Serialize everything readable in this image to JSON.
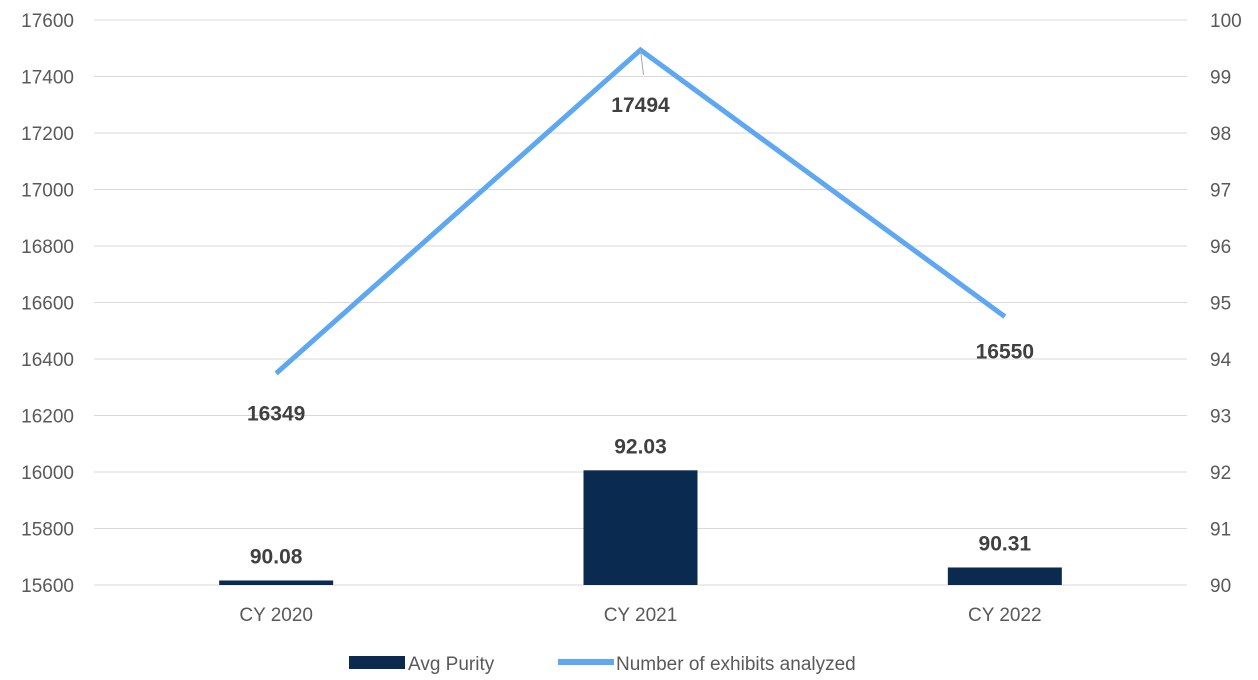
{
  "chart_data": {
    "type": "bar",
    "categories": [
      "CY 2020",
      "CY 2021",
      "CY 2022"
    ],
    "series": [
      {
        "name": "Avg Purity",
        "type": "bar",
        "axis": "right",
        "values": [
          90.08,
          92.03,
          90.31
        ],
        "color": "#0b2a4f"
      },
      {
        "name": "Number of exhibits analyzed",
        "type": "line",
        "axis": "left",
        "values": [
          16349,
          17494,
          16550
        ],
        "color": "#5ea7f2"
      }
    ],
    "y_left": {
      "min": 15600,
      "max": 17600,
      "step": 200,
      "tick_labels": [
        "15600",
        "15800",
        "16000",
        "16200",
        "16400",
        "16600",
        "16800",
        "17000",
        "17200",
        "17400",
        "17600"
      ]
    },
    "y_right": {
      "min": 90,
      "max": 100,
      "step": 1,
      "tick_labels": [
        "90",
        "91",
        "92",
        "93",
        "94",
        "95",
        "96",
        "97",
        "98",
        "99",
        "100"
      ]
    },
    "data_labels": {
      "bars": [
        "90.08",
        "92.03",
        "90.31"
      ],
      "line": [
        "16349",
        "17494",
        "16550"
      ]
    },
    "grid": true,
    "legend_position": "bottom",
    "gridline_color": "#d9d9d9",
    "axis_line_color": "#d9d9d9"
  }
}
